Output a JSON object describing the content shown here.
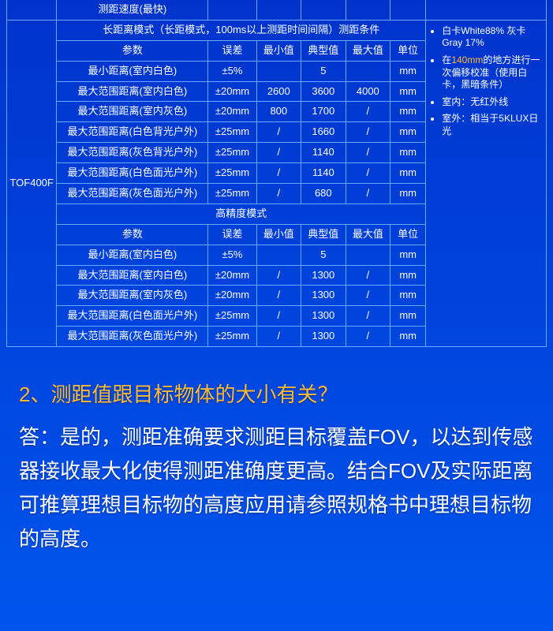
{
  "colors": {
    "bg_gradient_top": "#0033cc",
    "bg_gradient_bottom": "#0055ee",
    "border": "#66aaff",
    "text": "#ffffff",
    "accent": "#ffbb33"
  },
  "model_label": "TOF400F",
  "truncated_row": {
    "param": "测距速度(最快)"
  },
  "mode1": {
    "title": "长距离模式（长距模式，100ms以上测距时间间隔）测距条件",
    "headers": {
      "param": "参数",
      "err": "误差",
      "min": "最小值",
      "typ": "典型值",
      "max": "最大值",
      "unit": "单位"
    },
    "rows": [
      {
        "param": "最小距离(室内白色)",
        "err": "±5%",
        "min": "",
        "typ": "5",
        "max": "",
        "unit": "mm"
      },
      {
        "param": "最大范围距离(室内白色)",
        "err": "±20mm",
        "min": "2600",
        "typ": "3600",
        "max": "4000",
        "unit": "mm"
      },
      {
        "param": "最大范围距离(室内灰色)",
        "err": "±20mm",
        "min": "800",
        "typ": "1700",
        "max": "/",
        "unit": "mm"
      },
      {
        "param": "最大范围距离(白色背光户外)",
        "err": "±25mm",
        "min": "/",
        "typ": "1660",
        "max": "/",
        "unit": "mm"
      },
      {
        "param": "最大范围距离(灰色背光户外)",
        "err": "±25mm",
        "min": "/",
        "typ": "1140",
        "max": "/",
        "unit": "mm"
      },
      {
        "param": "最大范围距离(白色面光户外)",
        "err": "±25mm",
        "min": "/",
        "typ": "1140",
        "max": "/",
        "unit": "mm"
      },
      {
        "param": "最大范围距离(灰色面光户外)",
        "err": "±25mm",
        "min": "/",
        "typ": "680",
        "max": "/",
        "unit": "mm"
      }
    ]
  },
  "mode2": {
    "title": "高精度模式",
    "headers": {
      "param": "参数",
      "err": "误差",
      "min": "最小值",
      "typ": "典型值",
      "max": "最大值",
      "unit": "单位"
    },
    "rows": [
      {
        "param": "最小距离(室内白色)",
        "err": "±5%",
        "min": "",
        "typ": "5",
        "max": "",
        "unit": "mm"
      },
      {
        "param": "最大范围距离(室内白色)",
        "err": "±20mm",
        "min": "/",
        "typ": "1300",
        "max": "/",
        "unit": "mm"
      },
      {
        "param": "最大范围距离(室内灰色)",
        "err": "±20mm",
        "min": "/",
        "typ": "1300",
        "max": "/",
        "unit": "mm"
      },
      {
        "param": "最大范围距离(白色面光户外)",
        "err": "±25mm",
        "min": "/",
        "typ": "1300",
        "max": "/",
        "unit": "mm"
      },
      {
        "param": "最大范围距离(灰色面光户外)",
        "err": "±25mm",
        "min": "/",
        "typ": "1300",
        "max": "/",
        "unit": "mm"
      }
    ]
  },
  "notes": {
    "n1_pre": "白卡White88% 灰卡Gray 17%",
    "n2_pre": "在",
    "n2_accent": "140mm",
    "n2_post": "的地方进行一次偏移校准（使用白卡，黑暗条件）",
    "n3": "室内：无红外线",
    "n4": "室外：相当于5KLUX日光"
  },
  "qa": {
    "question": "2、测距值跟目标物体的大小有关？",
    "answer_prefix": "答：",
    "answer_body": "是的，测距准确要求测距目标覆盖FOV，以达到传感器接收最大化使得测距准确度更高。结合FOV及实际距离可推算理想目标物的高度应用请参照规格书中理想目标物的高度。"
  }
}
